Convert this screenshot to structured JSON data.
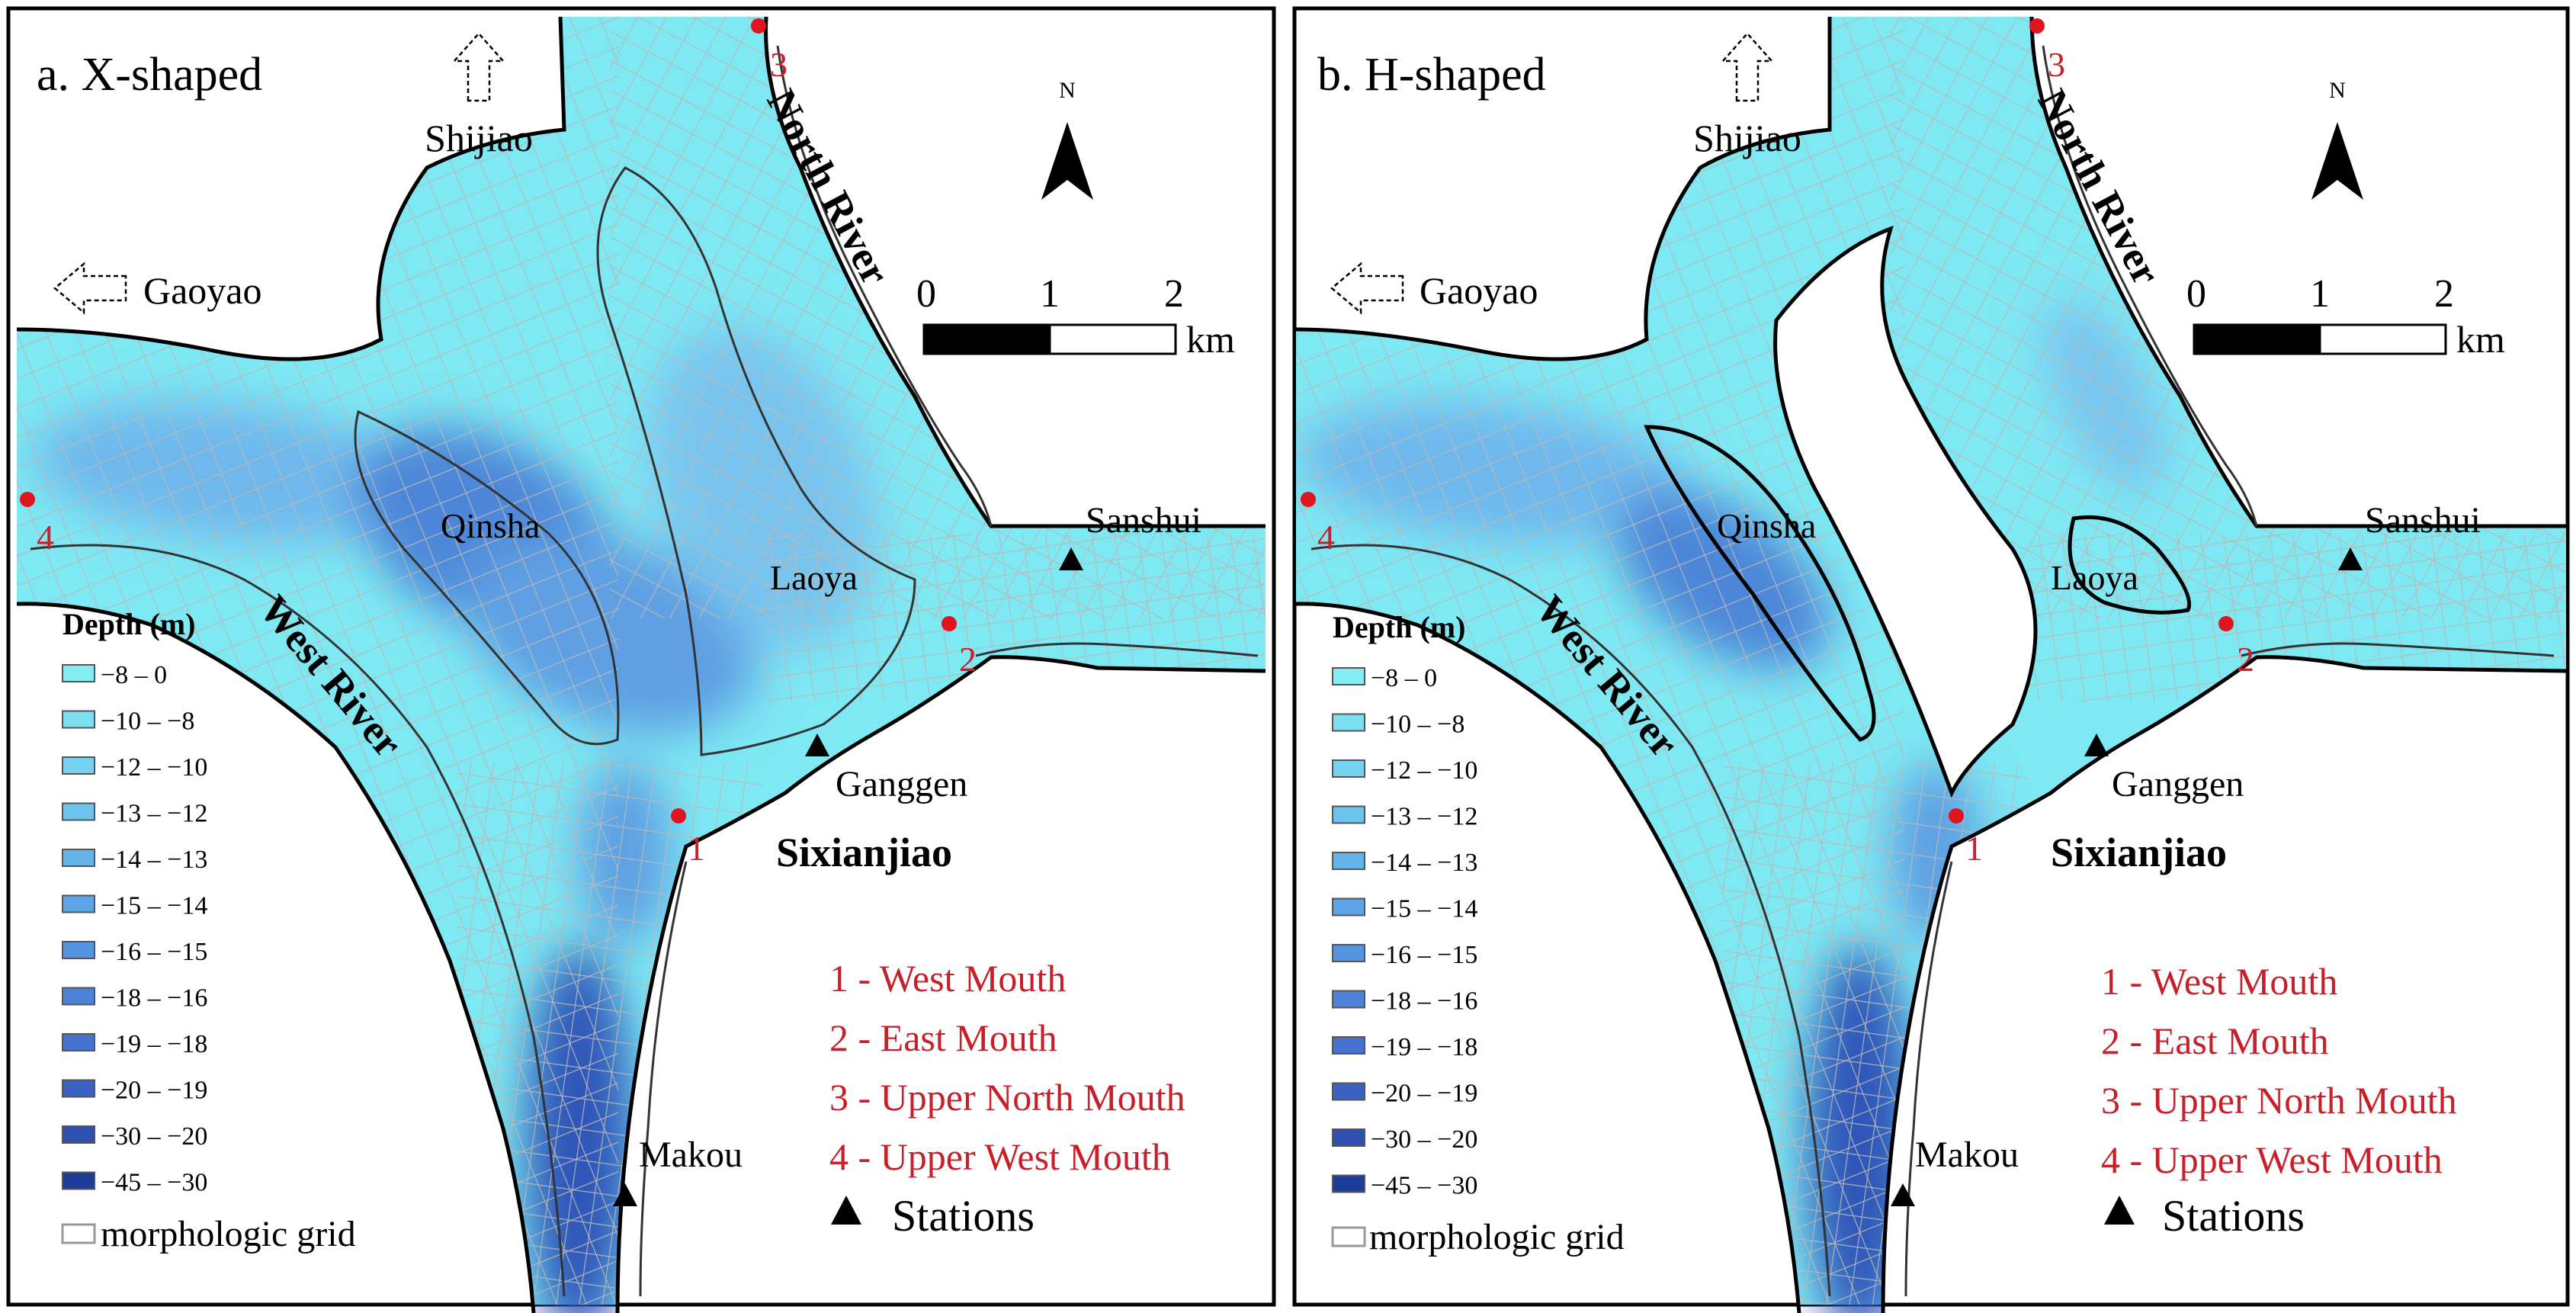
{
  "colors": {
    "water_light": "#7ee8f2",
    "water_mid": "#5fb4ec",
    "water_deep": "#3a6fd0",
    "water_deepest": "#1d3fa0",
    "grid_line": "#b7b7b7",
    "contour": "#2a2a2a",
    "mouth_marker": "#e0141e",
    "mouth_legend_text": "#c8202a",
    "frame": "#000000"
  },
  "icons": {
    "north_arrow": "north-arrow-icon",
    "station": "station-triangle-icon",
    "mouth": "mouth-point-icon",
    "flow_direction": "dashed-arrow-icon"
  },
  "panels": [
    {
      "id": "a",
      "title": "a. X-shaped",
      "labels": {
        "shijiao": "Shijiao",
        "gaoyao": "Gaoyao",
        "north_river": "North River",
        "west_river": "West River",
        "qinsha": "Qinsha",
        "laoya": "Laoya",
        "sanshui": "Sanshui",
        "ganggen": "Ganggen",
        "sixianjiao": "Sixianjiao",
        "makou": "Makou"
      },
      "mouth_numbers": [
        "1",
        "2",
        "3",
        "4"
      ],
      "north": "N",
      "scale": {
        "ticks": [
          "0",
          "1",
          "2"
        ],
        "unit": "km"
      },
      "depth_legend": {
        "title": "Depth (m)",
        "classes": [
          "−8 – 0",
          "−10 – −8",
          "−12 – −10",
          "−13 – −12",
          "−14 – −13",
          "−15 – −14",
          "−16 – −15",
          "−18 – −16",
          "−19 – −18",
          "−20 – −19",
          "−30 – −20",
          "−45 – −30"
        ],
        "colors": [
          "#86ecf4",
          "#7de0f2",
          "#75d2f0",
          "#6cc4ee",
          "#64b4ea",
          "#5da4e6",
          "#5594e0",
          "#4c82d8",
          "#4472ce",
          "#3b62c2",
          "#3050b0",
          "#1e3c9a"
        ],
        "grid_label": "morphologic grid"
      },
      "mouths_legend": [
        "1 - West Mouth",
        "2 - East Mouth",
        "3 - Upper North Mouth",
        "4 - Upper West Mouth"
      ],
      "stations_label": "Stations"
    },
    {
      "id": "b",
      "title": "b. H-shaped",
      "labels": {
        "shijiao": "Shijiao",
        "gaoyao": "Gaoyao",
        "north_river": "North River",
        "west_river": "West River",
        "qinsha": "Qinsha",
        "laoya": "Laoya",
        "sanshui": "Sanshui",
        "ganggen": "Ganggen",
        "sixianjiao": "Sixianjiao",
        "makou": "Makou"
      },
      "mouth_numbers": [
        "1",
        "2",
        "3",
        "4"
      ],
      "north": "N",
      "scale": {
        "ticks": [
          "0",
          "1",
          "2"
        ],
        "unit": "km"
      },
      "depth_legend": {
        "title": "Depth (m)",
        "classes": [
          "−8 – 0",
          "−10 – −8",
          "−12 – −10",
          "−13 – −12",
          "−14 – −13",
          "−15 – −14",
          "−16 – −15",
          "−18 – −16",
          "−19 – −18",
          "−20 – −19",
          "−30 – −20",
          "−45 – −30"
        ],
        "colors": [
          "#86ecf4",
          "#7de0f2",
          "#75d2f0",
          "#6cc4ee",
          "#64b4ea",
          "#5da4e6",
          "#5594e0",
          "#4c82d8",
          "#4472ce",
          "#3b62c2",
          "#3050b0",
          "#1e3c9a"
        ],
        "grid_label": "morphologic grid"
      },
      "mouths_legend": [
        "1 - West Mouth",
        "2 - East Mouth",
        "3 - Upper North Mouth",
        "4 - Upper West Mouth"
      ],
      "stations_label": "Stations"
    }
  ]
}
